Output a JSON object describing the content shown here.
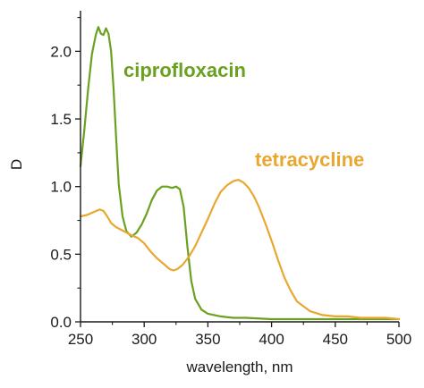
{
  "chart_data": {
    "type": "line",
    "title": "",
    "xlabel": "wavelength, nm",
    "ylabel": "D",
    "xlim": [
      250,
      500
    ],
    "ylim": [
      0,
      2.3
    ],
    "x_ticks": [
      250,
      300,
      350,
      400,
      450,
      500
    ],
    "y_ticks": [
      0.0,
      0.5,
      1.0,
      1.5,
      2.0
    ],
    "x_tick_labels": [
      "250",
      "300",
      "350",
      "400",
      "450",
      "500"
    ],
    "y_tick_labels": [
      "0.0",
      "0.5",
      "1.0",
      "1.5",
      "2.0"
    ],
    "grid": false,
    "legend": "none (series labelled in plot)",
    "series": [
      {
        "name": "ciprofloxacin",
        "color": "#6aa121",
        "x": [
          250,
          253,
          256,
          259,
          262,
          264,
          266,
          268,
          270,
          272,
          274,
          276,
          278,
          280,
          283,
          286,
          290,
          294,
          298,
          302,
          306,
          310,
          314,
          318,
          322,
          325,
          328,
          331,
          334,
          337,
          340,
          345,
          350,
          360,
          370,
          380,
          400,
          420,
          450,
          480,
          500
        ],
        "y": [
          1.15,
          1.42,
          1.72,
          1.98,
          2.12,
          2.18,
          2.13,
          2.12,
          2.17,
          2.13,
          2.0,
          1.72,
          1.35,
          1.02,
          0.78,
          0.67,
          0.63,
          0.66,
          0.72,
          0.8,
          0.9,
          0.97,
          1.0,
          1.0,
          0.99,
          1.0,
          0.98,
          0.85,
          0.55,
          0.3,
          0.17,
          0.09,
          0.06,
          0.04,
          0.03,
          0.03,
          0.02,
          0.02,
          0.02,
          0.02,
          0.02
        ]
      },
      {
        "name": "tetracycline",
        "color": "#e8a830",
        "x": [
          250,
          255,
          260,
          265,
          268,
          271,
          274,
          278,
          282,
          286,
          290,
          295,
          300,
          305,
          310,
          315,
          320,
          323,
          326,
          330,
          335,
          340,
          345,
          350,
          355,
          360,
          365,
          370,
          374,
          378,
          382,
          386,
          390,
          395,
          400,
          405,
          410,
          415,
          420,
          430,
          440,
          450,
          460,
          470,
          480,
          490,
          500
        ],
        "y": [
          0.78,
          0.79,
          0.81,
          0.83,
          0.82,
          0.78,
          0.73,
          0.7,
          0.68,
          0.66,
          0.64,
          0.62,
          0.58,
          0.52,
          0.47,
          0.43,
          0.39,
          0.38,
          0.39,
          0.42,
          0.48,
          0.56,
          0.66,
          0.76,
          0.87,
          0.96,
          1.01,
          1.04,
          1.05,
          1.03,
          0.99,
          0.93,
          0.85,
          0.73,
          0.6,
          0.46,
          0.33,
          0.23,
          0.15,
          0.08,
          0.05,
          0.04,
          0.04,
          0.03,
          0.03,
          0.03,
          0.02
        ]
      }
    ],
    "annotations": [
      {
        "text": "ciprofloxacin",
        "color": "#6aa121"
      },
      {
        "text": "tetracycline",
        "color": "#e8a830"
      }
    ]
  }
}
